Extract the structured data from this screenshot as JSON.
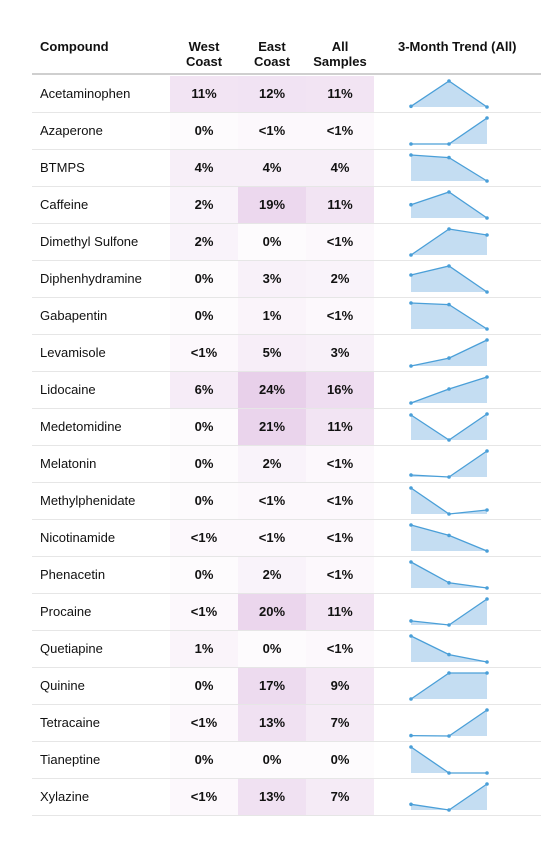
{
  "chart_data": {
    "type": "table",
    "columns": [
      "Compound",
      "West Coast",
      "East Coast",
      "All Samples",
      "3-Month Trend (All)"
    ],
    "columns_lines": [
      [
        "Compound"
      ],
      [
        "West",
        "Coast"
      ],
      [
        "East",
        "Coast"
      ],
      [
        "All",
        "Samples"
      ],
      [
        "3-Month Trend (All)"
      ]
    ],
    "highlight_color": "#c07fc7",
    "trend_line_color": "#4a9fd8",
    "trend_fill_color": "#c4ddf2",
    "rows": [
      {
        "compound": "Acetaminophen",
        "west": "11%",
        "east": "12%",
        "all": "11%",
        "west_value": 11,
        "east_value": 12,
        "all_value": 11,
        "trend": [
          0.8,
          12,
          0.5
        ]
      },
      {
        "compound": "Azaperone",
        "west": "0%",
        "east": "<1%",
        "all": "<1%",
        "west_value": 0,
        "east_value": 0.5,
        "all_value": 0.5,
        "trend": [
          0.2,
          0.2,
          1.3
        ]
      },
      {
        "compound": "BTMPS",
        "west": "4%",
        "east": "4%",
        "all": "4%",
        "west_value": 4,
        "east_value": 4,
        "all_value": 4,
        "trend": [
          8,
          7.4,
          1.9
        ]
      },
      {
        "compound": "Caffeine",
        "west": "2%",
        "east": "19%",
        "all": "11%",
        "west_value": 2,
        "east_value": 19,
        "all_value": 11,
        "trend": [
          10,
          14,
          5.8
        ]
      },
      {
        "compound": "Dimethyl Sulfone",
        "west": "2%",
        "east": "0%",
        "all": "<1%",
        "west_value": 2,
        "east_value": 0,
        "all_value": 0.5,
        "trend": [
          0.3,
          1.6,
          1.3
        ]
      },
      {
        "compound": "Diphenhydramine",
        "west": "0%",
        "east": "3%",
        "all": "2%",
        "west_value": 0,
        "east_value": 3,
        "all_value": 2,
        "trend": [
          2.5,
          3.4,
          0.8
        ]
      },
      {
        "compound": "Gabapentin",
        "west": "0%",
        "east": "1%",
        "all": "<1%",
        "west_value": 0,
        "east_value": 1,
        "all_value": 0.5,
        "trend": [
          1.0,
          0.95,
          0.2
        ]
      },
      {
        "compound": "Levamisole",
        "west": "<1%",
        "east": "5%",
        "all": "3%",
        "west_value": 0.5,
        "east_value": 5,
        "all_value": 3,
        "trend": [
          0.7,
          2.0,
          5.0
        ]
      },
      {
        "compound": "Lidocaine",
        "west": "6%",
        "east": "24%",
        "all": "16%",
        "west_value": 6,
        "east_value": 24,
        "all_value": 16,
        "trend": [
          5,
          12,
          18
        ]
      },
      {
        "compound": "Medetomidine",
        "west": "0%",
        "east": "21%",
        "all": "11%",
        "west_value": 0,
        "east_value": 21,
        "all_value": 11,
        "trend": [
          13.5,
          1,
          14
        ]
      },
      {
        "compound": "Melatonin",
        "west": "0%",
        "east": "2%",
        "all": "<1%",
        "west_value": 0,
        "east_value": 2,
        "all_value": 0.5,
        "trend": [
          0.4,
          0.3,
          1.6
        ]
      },
      {
        "compound": "Methylphenidate",
        "west": "0%",
        "east": "<1%",
        "all": "<1%",
        "west_value": 0,
        "east_value": 0.5,
        "all_value": 0.5,
        "trend": [
          1.0,
          0.35,
          0.45
        ]
      },
      {
        "compound": "Nicotinamide",
        "west": "<1%",
        "east": "<1%",
        "all": "<1%",
        "west_value": 0.5,
        "east_value": 0.5,
        "all_value": 0.5,
        "trend": [
          1.2,
          0.9,
          0.45
        ]
      },
      {
        "compound": "Phenacetin",
        "west": "0%",
        "east": "2%",
        "all": "<1%",
        "west_value": 0,
        "east_value": 2,
        "all_value": 0.5,
        "trend": [
          1.6,
          0.8,
          0.6
        ]
      },
      {
        "compound": "Procaine",
        "west": "<1%",
        "east": "20%",
        "all": "11%",
        "west_value": 0.5,
        "east_value": 20,
        "all_value": 11,
        "trend": [
          4,
          2.5,
          12
        ]
      },
      {
        "compound": "Quetiapine",
        "west": "1%",
        "east": "0%",
        "all": "<1%",
        "west_value": 1,
        "east_value": 0,
        "all_value": 0.5,
        "trend": [
          1.4,
          0.65,
          0.35
        ]
      },
      {
        "compound": "Quinine",
        "west": "0%",
        "east": "17%",
        "all": "9%",
        "west_value": 0,
        "east_value": 17,
        "all_value": 9,
        "trend": [
          1,
          9,
          9
        ]
      },
      {
        "compound": "Tetracaine",
        "west": "<1%",
        "east": "13%",
        "all": "7%",
        "west_value": 0.5,
        "east_value": 13,
        "all_value": 7,
        "trend": [
          0.5,
          0.4,
          7
        ]
      },
      {
        "compound": "Tianeptine",
        "west": "0%",
        "east": "0%",
        "all": "0%",
        "west_value": 0,
        "east_value": 0,
        "all_value": 0,
        "trend": [
          0.8,
          0.1,
          0.1
        ]
      },
      {
        "compound": "Xylazine",
        "west": "<1%",
        "east": "13%",
        "all": "7%",
        "west_value": 0.5,
        "east_value": 13,
        "all_value": 7,
        "trend": [
          3,
          0.5,
          12
        ]
      }
    ]
  }
}
